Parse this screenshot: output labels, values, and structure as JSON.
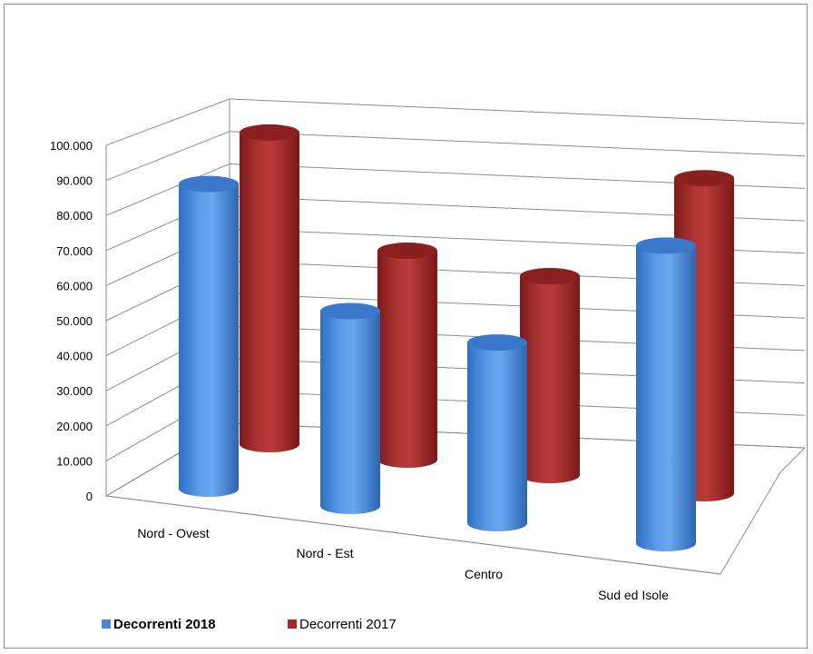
{
  "chart_data": {
    "type": "bar",
    "style": "3d-cylinder",
    "categories": [
      "Nord - Ovest",
      "Nord - Est",
      "Centro",
      "Sud ed Isole"
    ],
    "series": [
      {
        "name": "Decorrenti 2018",
        "color": "#4a89dc",
        "values": [
          86000,
          55000,
          51000,
          84000
        ]
      },
      {
        "name": "Decorrenti 2017",
        "color": "#a52a2a",
        "values": [
          94000,
          63000,
          60000,
          95000
        ]
      }
    ],
    "y_ticks": [
      "0",
      "10.000",
      "20.000",
      "30.000",
      "40.000",
      "50.000",
      "60.000",
      "70.000",
      "80.000",
      "90.000",
      "100.000"
    ],
    "ylim": [
      0,
      100000
    ],
    "grid": true,
    "legend": "bottom-left"
  }
}
